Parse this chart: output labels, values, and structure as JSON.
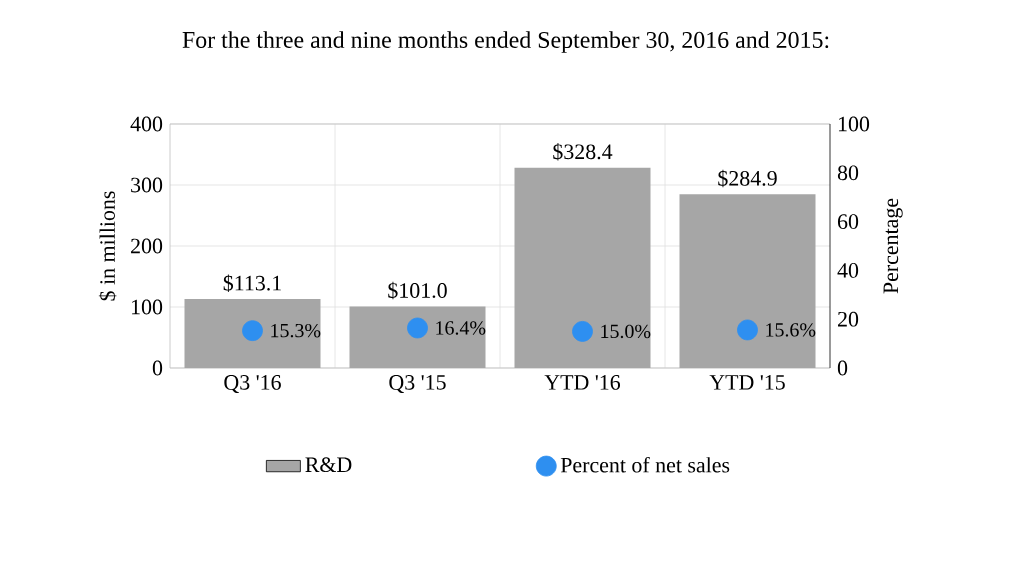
{
  "chart_data": {
    "type": "bar",
    "title": "For the three and nine months ended September 30, 2016 and 2015:",
    "categories": [
      "Q3 '16",
      "Q3 '15",
      "YTD '16",
      "YTD '15"
    ],
    "ylabel": "$ in millions",
    "y2label": "Percentage",
    "series": [
      {
        "name": "R&D",
        "color": "#a6a6a6",
        "values": [
          113.1,
          101.0,
          328.4,
          284.9
        ],
        "value_labels": [
          "$113.1",
          "$101.0",
          "$328.4",
          "$284.9"
        ]
      },
      {
        "name": "Percent of net sales",
        "type": "scatter",
        "axis": "y2",
        "color": "#2e8ff0",
        "values": [
          15.3,
          16.4,
          15.0,
          15.6
        ],
        "value_labels": [
          "15.3%",
          "16.4%",
          "15.0%",
          "15.6%"
        ]
      }
    ],
    "ylim": [
      0,
      400
    ],
    "yticks": [
      0,
      100,
      200,
      300,
      400
    ],
    "y2lim": [
      0,
      100
    ],
    "y2ticks": [
      0,
      20,
      40,
      60,
      80,
      100
    ],
    "grid": true,
    "legend": "bottom"
  }
}
